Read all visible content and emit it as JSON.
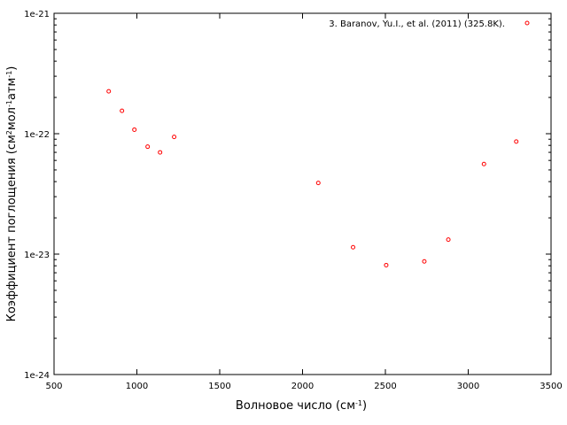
{
  "chart_data": {
    "type": "scatter",
    "title": "",
    "xlabel": "Волновое число (см",
    "xlabel_sup": "-1",
    "xlabel_end": ")",
    "ylabel_parts": [
      "Коэффициент поглощения (см",
      "2",
      "мол",
      "-1",
      "атм",
      "-1",
      ")"
    ],
    "xlim": [
      500,
      3500
    ],
    "ylim": [
      1e-24,
      1e-21
    ],
    "yscale": "log",
    "grid": false,
    "legend_position": "top-right",
    "x_ticks": [
      500,
      1000,
      1500,
      2000,
      2500,
      3000,
      3500
    ],
    "x_tick_labels": [
      "500",
      "1000",
      "1500",
      "2000",
      "2500",
      "3000",
      "3500"
    ],
    "y_ticks": [
      1e-24,
      1e-23,
      1e-22,
      1e-21
    ],
    "y_tick_labels": [
      "1e-24",
      "1e-23",
      "1e-22",
      "1e-21"
    ],
    "series": [
      {
        "name": "3. Baranov, Yu.I., et al. (2011) (325.8K).",
        "color": "#ff0000",
        "marker": "open-circle",
        "x": [
          830,
          910,
          985,
          1065,
          1140,
          1225,
          2095,
          2305,
          2505,
          2735,
          2880,
          3095,
          3290
        ],
        "y": [
          2.25e-22,
          1.55e-22,
          1.08e-22,
          7.8e-23,
          7e-23,
          9.4e-23,
          3.9e-23,
          1.14e-23,
          8.1e-24,
          8.7e-24,
          1.32e-23,
          5.6e-23,
          8.6e-23
        ]
      }
    ]
  }
}
